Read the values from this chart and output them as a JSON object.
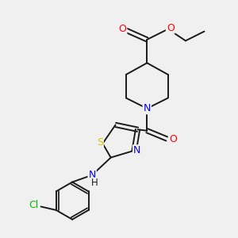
{
  "bg_color": "#f0f0f0",
  "bond_color": "#1a1a1a",
  "atom_colors": {
    "O": "#ff0000",
    "N": "#0000ff",
    "S": "#cccc00",
    "Cl": "#00bb00",
    "C": "#1a1a1a",
    "H": "#1a1a1a"
  },
  "font_size": 8.5,
  "line_width": 1.4
}
